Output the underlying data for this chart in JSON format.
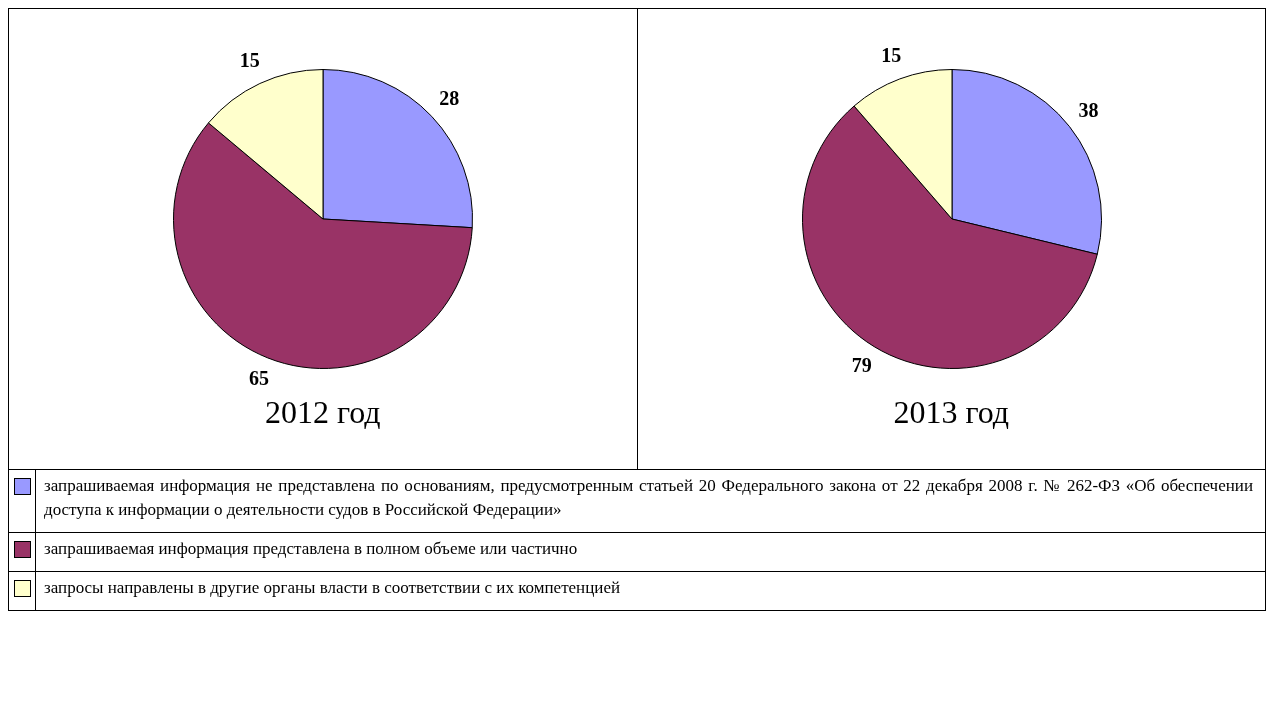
{
  "chart_data": [
    {
      "type": "pie",
      "title": "2012 год",
      "categories": [
        "запрашиваемая информация не представлена по основаниям, предусмотренным статьей 20 Федерального закона от 22 декабря 2008 г. № 262-ФЗ «Об обеспечении доступа к информации о деятельности судов в Российской Федерации»",
        "запрашиваемая информация представлена в полном объеме или частично",
        "запросы направлены в другие органы власти в соответствии с их компетенцией"
      ],
      "values": [
        28,
        65,
        15
      ],
      "colors": [
        "#9999ff",
        "#993366",
        "#ffffcc"
      ],
      "data_labels": true,
      "legend": "bottom"
    },
    {
      "type": "pie",
      "title": "2013 год",
      "categories": [
        null,
        null,
        null
      ],
      "values": [
        38,
        79,
        15
      ],
      "colors": [
        "#9999ff",
        "#993366",
        "#ffffcc"
      ],
      "data_labels": true
    }
  ]
}
